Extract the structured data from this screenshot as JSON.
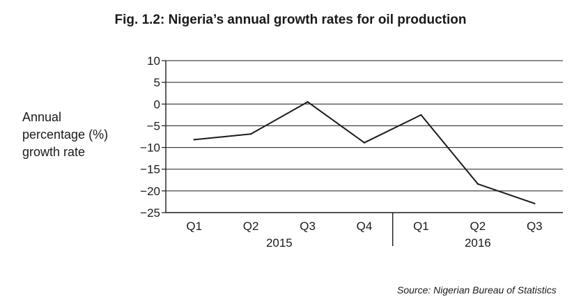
{
  "chart_data": {
    "type": "line",
    "title": "Fig. 1.2: Nigeria’s annual growth rates for oil production",
    "ylabel_lines": [
      "Annual",
      "percentage (%)",
      "growth rate"
    ],
    "xlabel": "",
    "categories": [
      "Q1",
      "Q2",
      "Q3",
      "Q4",
      "Q1",
      "Q2",
      "Q3"
    ],
    "groups": [
      {
        "label": "2015",
        "count": 4
      },
      {
        "label": "2016",
        "count": 3
      }
    ],
    "values": [
      -8.2,
      -6.9,
      0.5,
      -8.9,
      -2.5,
      -18.4,
      -22.9
    ],
    "ylim": [
      -25,
      10
    ],
    "yticks": [
      10,
      5,
      0,
      -5,
      -10,
      -15,
      -20,
      -25
    ],
    "ytick_labels": [
      "10",
      "5",
      "0",
      "−5",
      "−10",
      "−15",
      "−20",
      "−25"
    ],
    "grid": true,
    "line_color": "#1a1a1a",
    "grid_color": "#1a1a1a",
    "source": "Source: Nigerian Bureau of Statistics"
  }
}
